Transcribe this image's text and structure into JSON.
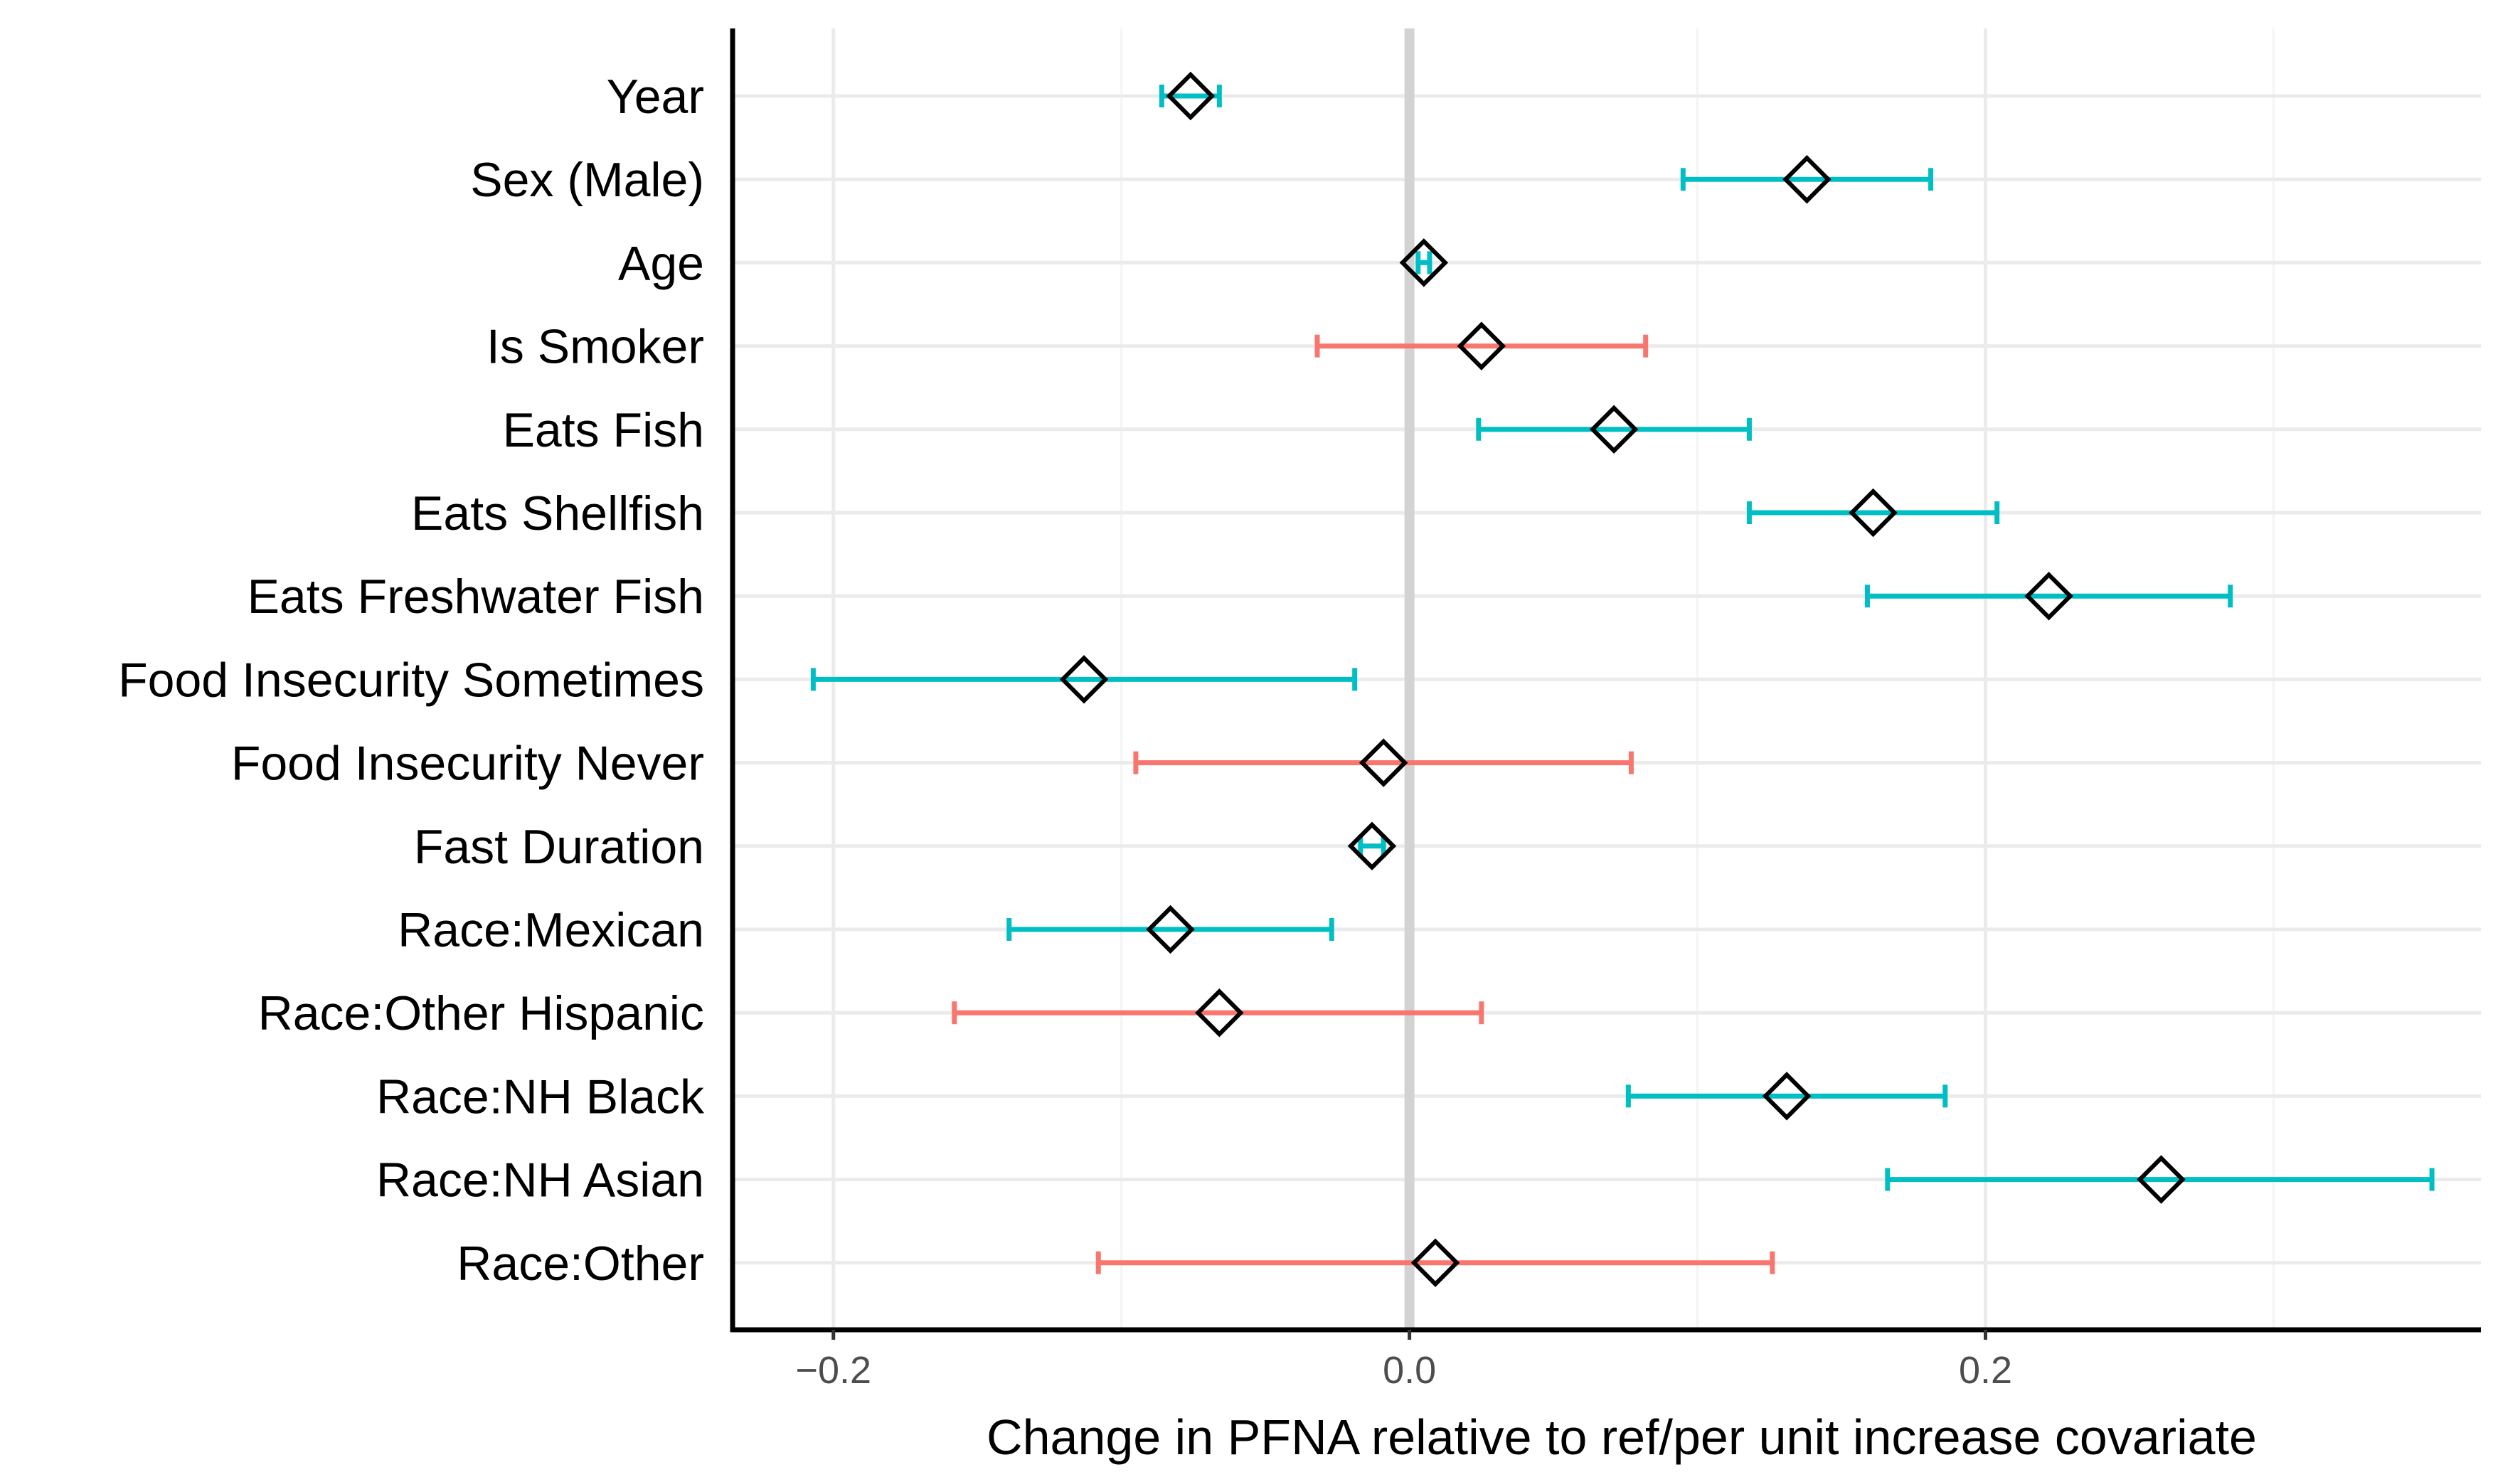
{
  "chart_data": {
    "type": "forest",
    "xlabel": "Change in PFNA relative to ref/per unit increase covariate",
    "xlim": [
      -0.235,
      0.372
    ],
    "x_ticks": [
      -0.2,
      0.0,
      0.2
    ],
    "x_tick_labels": [
      "−0.2",
      "0.0",
      "0.2"
    ],
    "reference_line": 0,
    "grid": true,
    "colors": {
      "significant": "#00BFC4",
      "not_significant": "#F8766D",
      "reference_line": "#d3d3d3",
      "grid": "#ebebeb",
      "point_stroke": "#000000"
    },
    "rows": [
      {
        "label": "Year",
        "estimate": -0.076,
        "lower": -0.086,
        "upper": -0.066,
        "significant": true
      },
      {
        "label": "Sex (Male)",
        "estimate": 0.138,
        "lower": 0.095,
        "upper": 0.181,
        "significant": true
      },
      {
        "label": "Age",
        "estimate": 0.005,
        "lower": 0.003,
        "upper": 0.007,
        "significant": true
      },
      {
        "label": "Is Smoker",
        "estimate": 0.025,
        "lower": -0.032,
        "upper": 0.082,
        "significant": false
      },
      {
        "label": "Eats Fish",
        "estimate": 0.071,
        "lower": 0.024,
        "upper": 0.118,
        "significant": true
      },
      {
        "label": "Eats Shellfish",
        "estimate": 0.161,
        "lower": 0.118,
        "upper": 0.204,
        "significant": true
      },
      {
        "label": "Eats Freshwater Fish",
        "estimate": 0.222,
        "lower": 0.159,
        "upper": 0.285,
        "significant": true
      },
      {
        "label": "Food Insecurity Sometimes",
        "estimate": -0.113,
        "lower": -0.207,
        "upper": -0.019,
        "significant": true
      },
      {
        "label": "Food Insecurity Never",
        "estimate": -0.009,
        "lower": -0.095,
        "upper": 0.077,
        "significant": false
      },
      {
        "label": "Fast Duration",
        "estimate": -0.013,
        "lower": -0.017,
        "upper": -0.009,
        "significant": true
      },
      {
        "label": "Race:Mexican",
        "estimate": -0.083,
        "lower": -0.139,
        "upper": -0.027,
        "significant": true
      },
      {
        "label": "Race:Other Hispanic",
        "estimate": -0.066,
        "lower": -0.158,
        "upper": 0.025,
        "significant": false
      },
      {
        "label": "Race:NH Black",
        "estimate": 0.131,
        "lower": 0.076,
        "upper": 0.186,
        "significant": true
      },
      {
        "label": "Race:NH Asian",
        "estimate": 0.261,
        "lower": 0.166,
        "upper": 0.355,
        "significant": true
      },
      {
        "label": "Race:Other",
        "estimate": 0.009,
        "lower": -0.108,
        "upper": 0.126,
        "significant": false
      }
    ]
  }
}
